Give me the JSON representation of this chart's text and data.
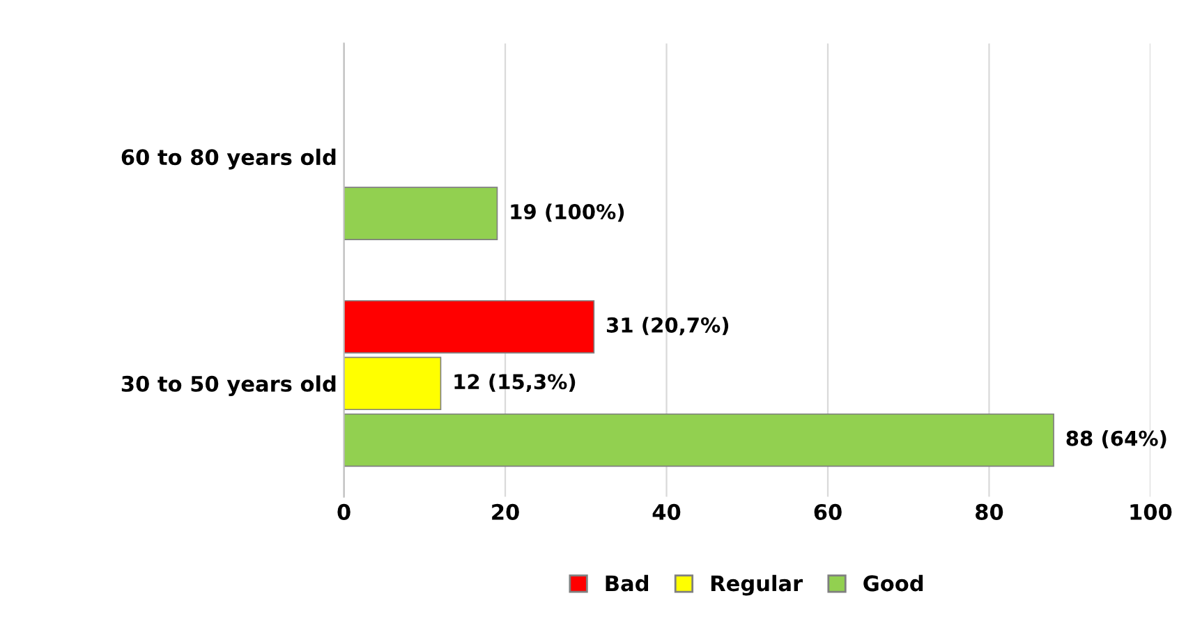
{
  "chart_data": {
    "type": "bar",
    "orientation": "horizontal",
    "categories": [
      "60 to 80 years old",
      "30 to 50 years old"
    ],
    "series": [
      {
        "name": "Bad",
        "color": "#ff0000",
        "values": [
          null,
          31
        ],
        "value_labels": [
          null,
          "31 (20,7%)"
        ]
      },
      {
        "name": "Regular",
        "color": "#ffff00",
        "values": [
          null,
          12
        ],
        "value_labels": [
          null,
          "12 (15,3%)"
        ]
      },
      {
        "name": "Good",
        "color": "#92d050",
        "values": [
          19,
          88
        ],
        "value_labels": [
          "19 (100%)",
          "88 (64%)"
        ]
      }
    ],
    "xlim": [
      0,
      100
    ],
    "xticks": [
      0,
      20,
      40,
      60,
      80,
      100
    ],
    "grid": "x",
    "legend": "bottom"
  }
}
